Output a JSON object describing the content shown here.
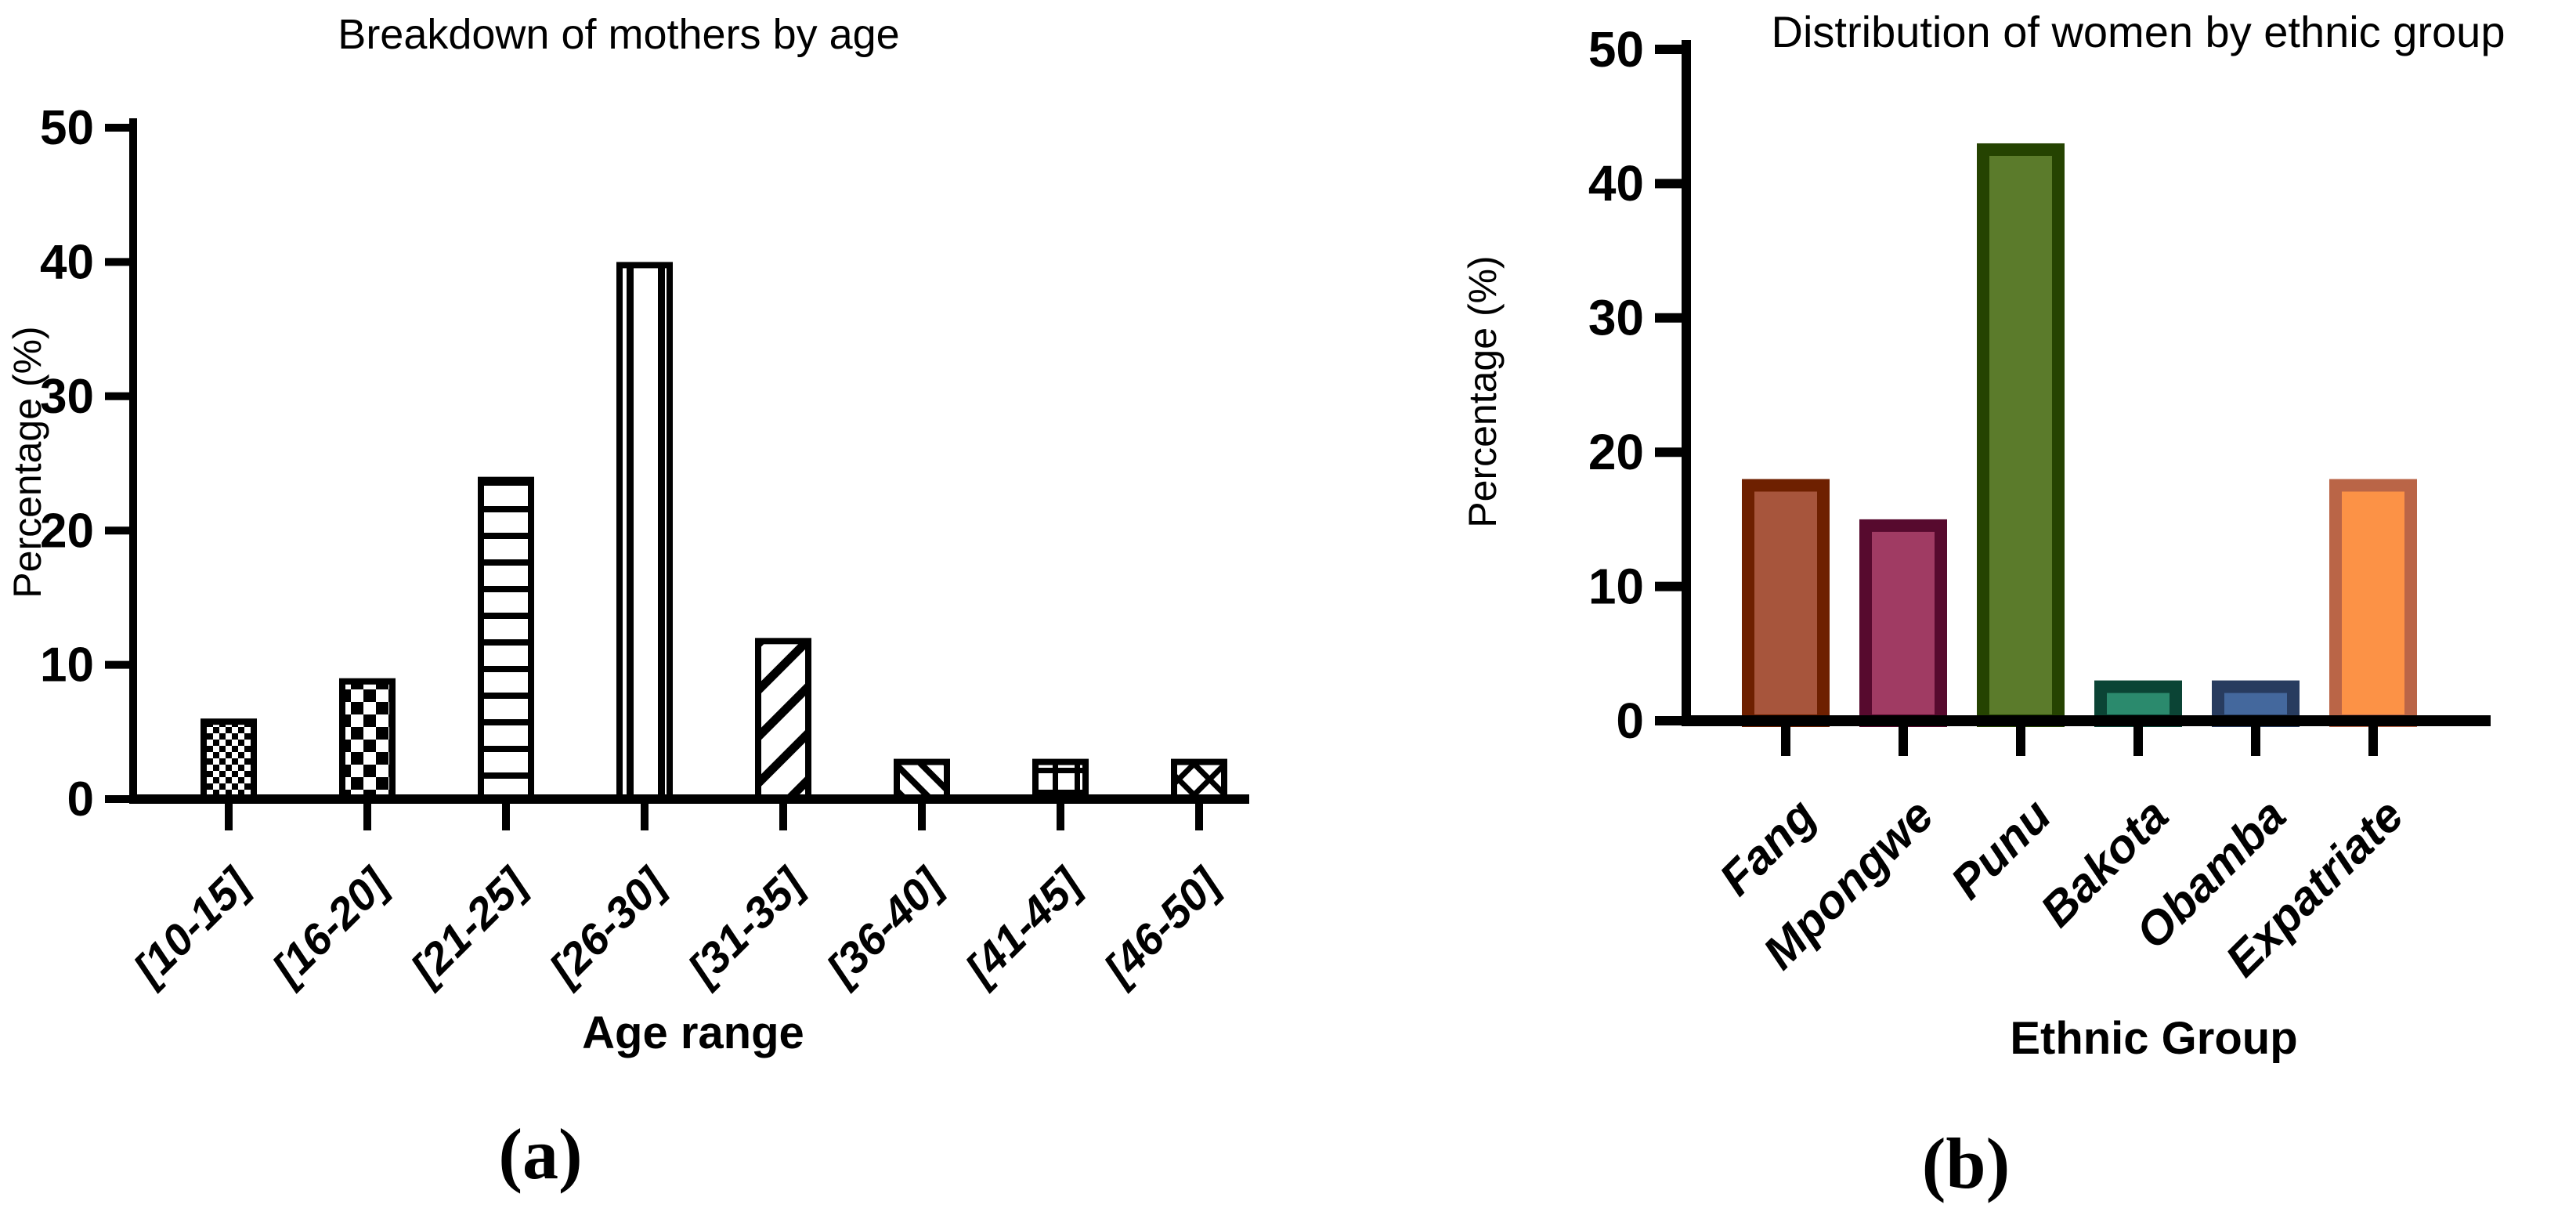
{
  "figure": {
    "caption_a": "(a)",
    "caption_b": "(b)"
  },
  "chart_data": [
    {
      "id": "mothers-by-age",
      "type": "bar",
      "title": "Breakdown of mothers by age",
      "xlabel": "Age range",
      "ylabel": "Percentage (%)",
      "ylim": [
        0,
        50
      ],
      "yticks": [
        0,
        10,
        20,
        30,
        40,
        50
      ],
      "categories": [
        "[10-15]",
        "[16-20]",
        "[21-25]",
        "[26-30]",
        "[31-35]",
        "[36-40]",
        "[41-45]",
        "[46-50]"
      ],
      "values": [
        6,
        9,
        24,
        40,
        12,
        3,
        3,
        3
      ],
      "grid": false,
      "legend_position": "none",
      "bar_style": "black-and-white patterned outlines",
      "patterns": [
        "fine-checkerboard",
        "coarse-checkerboard",
        "horizontal-stripes",
        "vertical-stripes",
        "diagonal-up-stripes",
        "diagonal-down-stripes",
        "grid-hatch",
        "diagonal-crosshatch"
      ],
      "axis_color": "#000000"
    },
    {
      "id": "women-by-ethnic-group",
      "type": "bar",
      "title": "Distribution of women by ethnic group",
      "xlabel": "Ethnic Group",
      "ylabel": "Percentage (%)",
      "ylim": [
        0,
        50
      ],
      "yticks": [
        0,
        10,
        20,
        30,
        40,
        50
      ],
      "categories": [
        "Fang",
        "Mpongwe",
        "Punu",
        "Bakota",
        "Obamba",
        "Expatriate"
      ],
      "values": [
        18,
        15,
        43,
        3,
        3,
        18
      ],
      "grid": false,
      "legend_position": "none",
      "bar_colors": [
        {
          "fill": "#A7553C",
          "border": "#6E2000"
        },
        {
          "fill": "#A03B63",
          "border": "#570A2E"
        },
        {
          "fill": "#5B7B2B",
          "border": "#254301"
        },
        {
          "fill": "#2B8A6D",
          "border": "#0B4435"
        },
        {
          "fill": "#44689D",
          "border": "#283C5F"
        },
        {
          "fill": "#FC9246",
          "border": "#BA6547"
        }
      ],
      "axis_color": "#000000"
    }
  ]
}
